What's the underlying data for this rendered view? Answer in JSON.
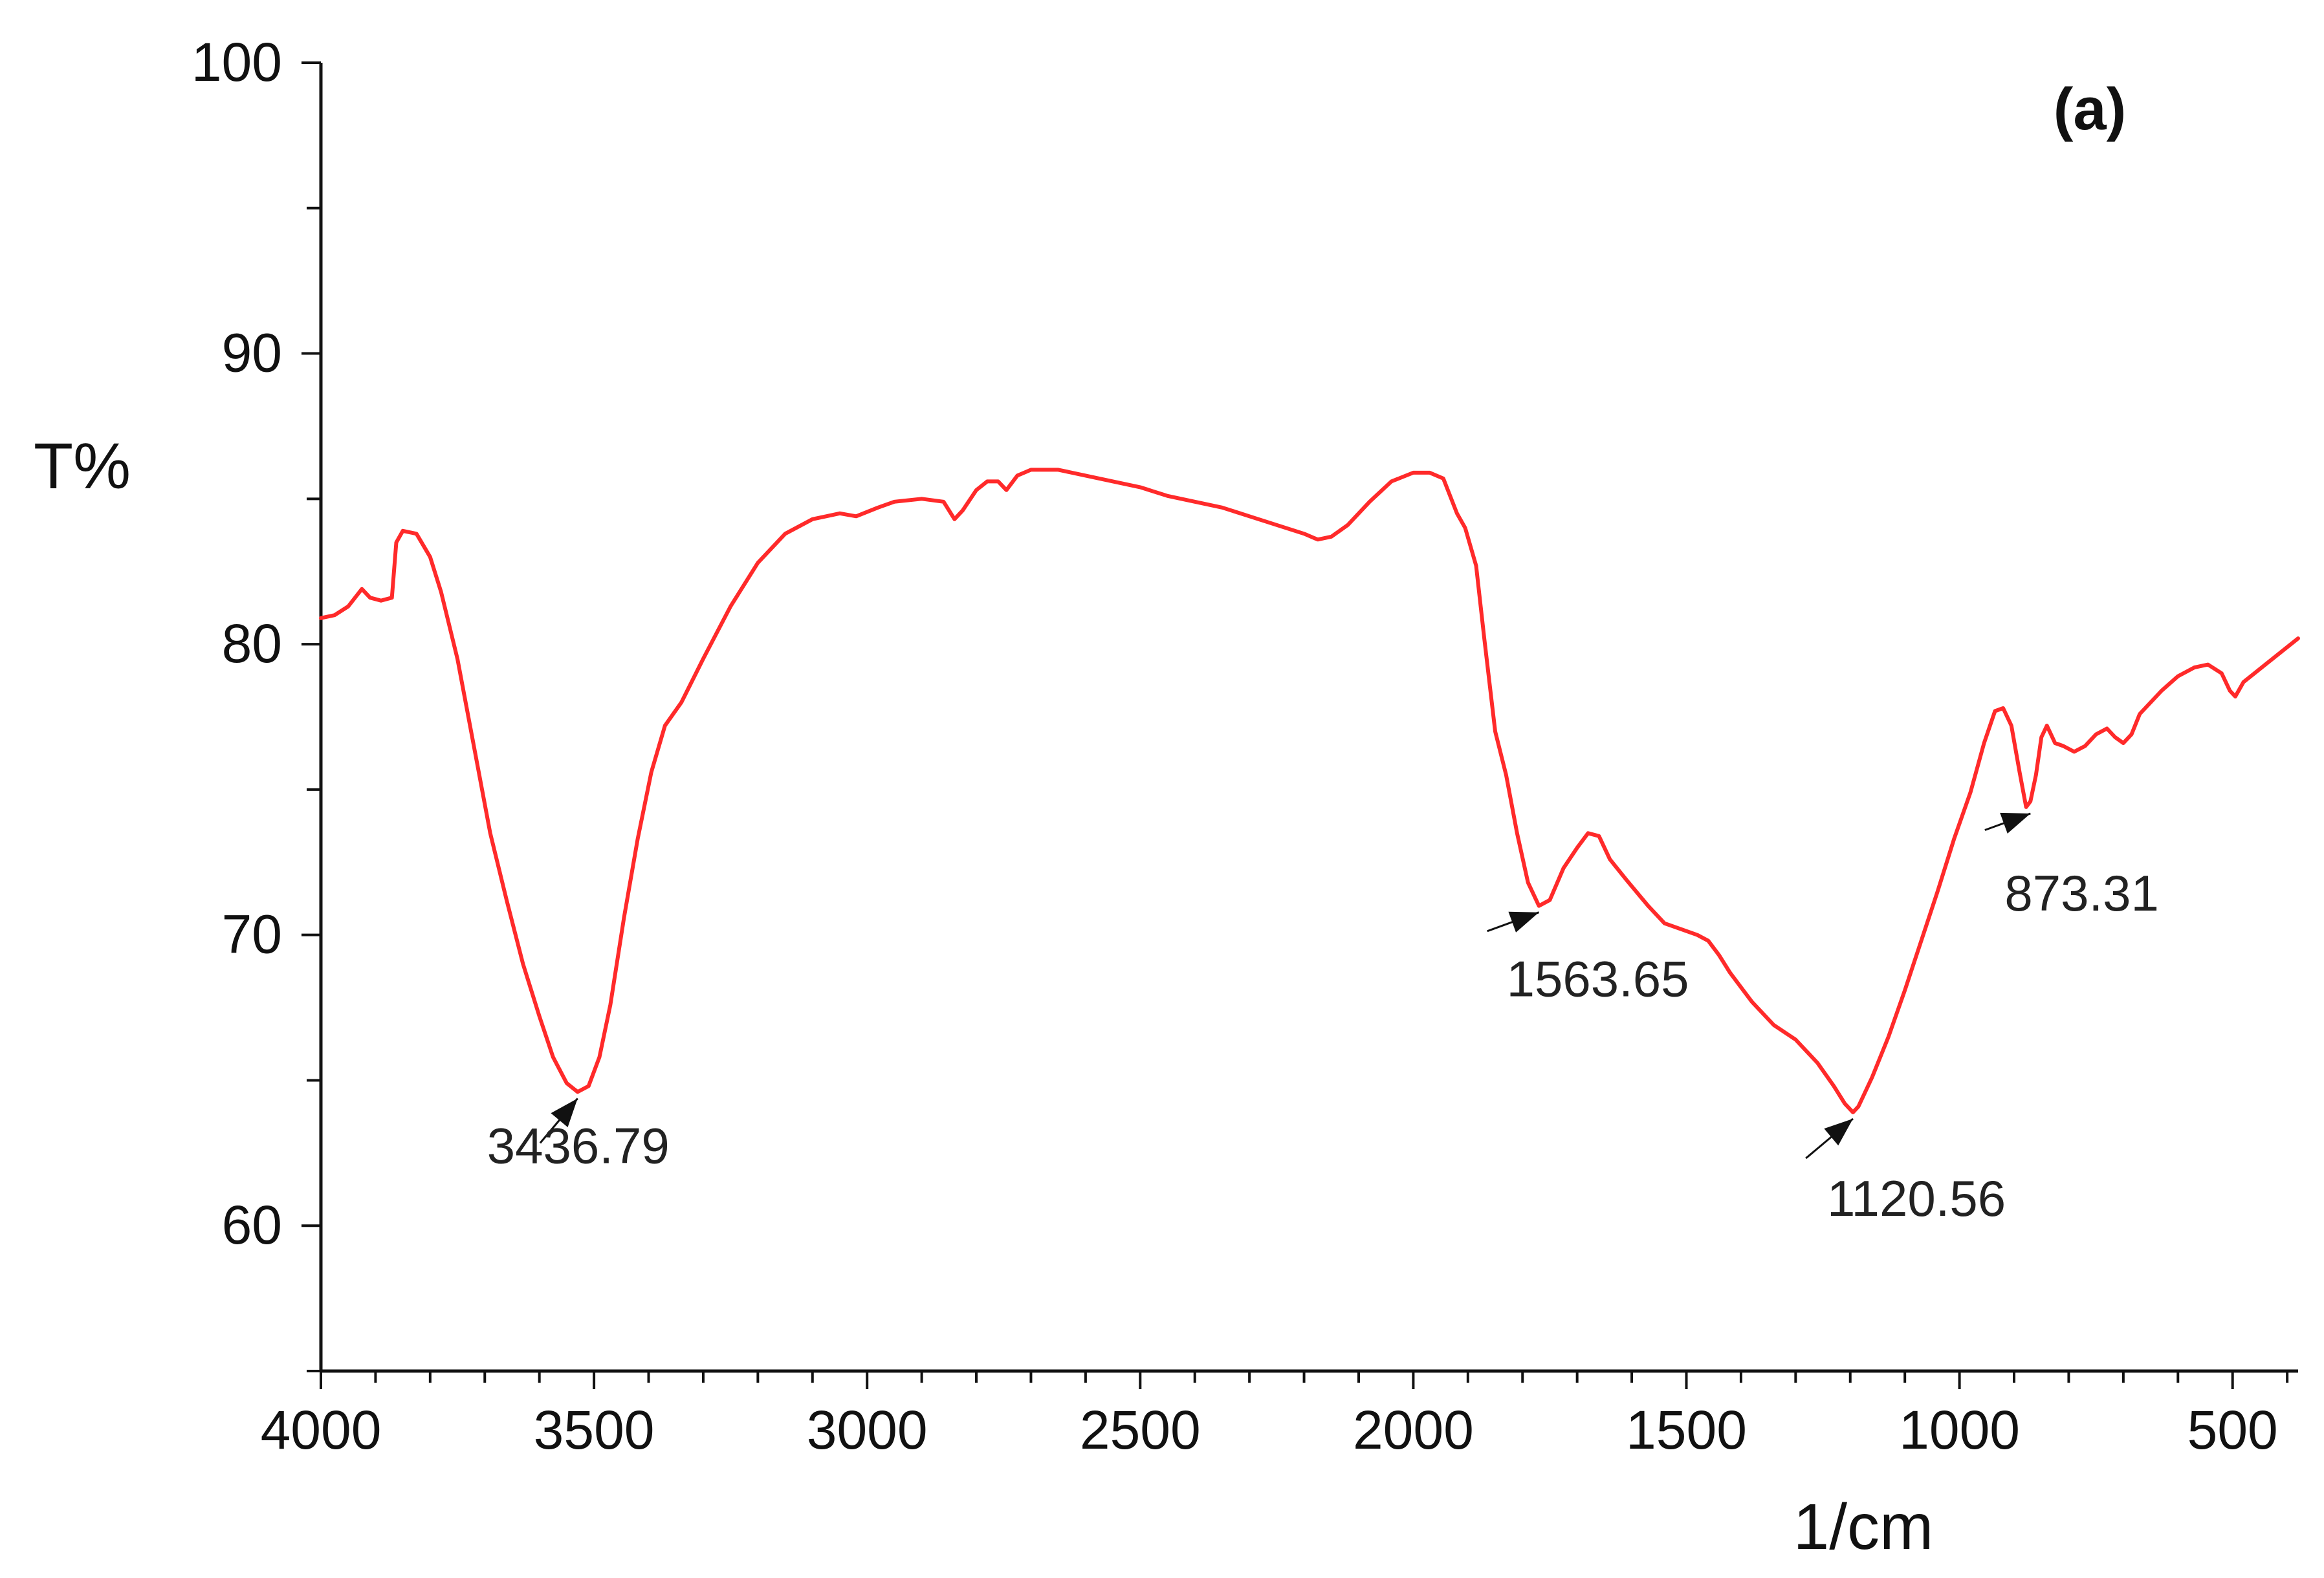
{
  "chart_data": {
    "type": "line",
    "title": "",
    "panel_label": "(a)",
    "xlabel": "1/cm",
    "ylabel": "T%",
    "xlim": [
      4000,
      380
    ],
    "ylim": [
      55,
      100
    ],
    "x_reversed": true,
    "grid": false,
    "legend": "none",
    "x_ticks": [
      4000,
      3500,
      3000,
      2500,
      2000,
      1500,
      1000,
      500
    ],
    "x_tick_labels": [
      "4000",
      "3500",
      "3000",
      "2500",
      "2000",
      "1500",
      "1000",
      "500"
    ],
    "y_ticks": [
      60,
      70,
      80,
      90,
      100
    ],
    "y_tick_labels": [
      "60",
      "70",
      "80",
      "90",
      "100"
    ],
    "line_color": "#ff2a2a",
    "arrow_color": "#111111",
    "series": [
      {
        "color": "#ff2a2a",
        "points": [
          [
            4000,
            80.9
          ],
          [
            3975,
            81.0
          ],
          [
            3950,
            81.3
          ],
          [
            3925,
            81.9
          ],
          [
            3910,
            81.6
          ],
          [
            3890,
            81.5
          ],
          [
            3870,
            81.6
          ],
          [
            3862,
            83.5
          ],
          [
            3850,
            83.9
          ],
          [
            3825,
            83.8
          ],
          [
            3800,
            83.0
          ],
          [
            3780,
            81.8
          ],
          [
            3750,
            79.5
          ],
          [
            3720,
            76.5
          ],
          [
            3690,
            73.5
          ],
          [
            3660,
            71.2
          ],
          [
            3630,
            69.0
          ],
          [
            3600,
            67.2
          ],
          [
            3575,
            65.8
          ],
          [
            3550,
            64.9
          ],
          [
            3530,
            64.6
          ],
          [
            3510,
            64.8
          ],
          [
            3490,
            65.8
          ],
          [
            3470,
            67.6
          ],
          [
            3445,
            70.6
          ],
          [
            3420,
            73.3
          ],
          [
            3395,
            75.6
          ],
          [
            3370,
            77.2
          ],
          [
            3340,
            78.0
          ],
          [
            3300,
            79.5
          ],
          [
            3250,
            81.3
          ],
          [
            3200,
            82.8
          ],
          [
            3150,
            83.8
          ],
          [
            3100,
            84.3
          ],
          [
            3050,
            84.5
          ],
          [
            3020,
            84.4
          ],
          [
            2980,
            84.7
          ],
          [
            2950,
            84.9
          ],
          [
            2900,
            85.0
          ],
          [
            2860,
            84.9
          ],
          [
            2840,
            84.3
          ],
          [
            2825,
            84.6
          ],
          [
            2800,
            85.3
          ],
          [
            2780,
            85.6
          ],
          [
            2760,
            85.6
          ],
          [
            2745,
            85.3
          ],
          [
            2725,
            85.8
          ],
          [
            2700,
            86.0
          ],
          [
            2650,
            86.0
          ],
          [
            2600,
            85.8
          ],
          [
            2550,
            85.6
          ],
          [
            2500,
            85.4
          ],
          [
            2450,
            85.1
          ],
          [
            2400,
            84.9
          ],
          [
            2350,
            84.7
          ],
          [
            2300,
            84.4
          ],
          [
            2250,
            84.1
          ],
          [
            2200,
            83.8
          ],
          [
            2175,
            83.6
          ],
          [
            2150,
            83.7
          ],
          [
            2120,
            84.1
          ],
          [
            2080,
            84.9
          ],
          [
            2040,
            85.6
          ],
          [
            2000,
            85.9
          ],
          [
            1970,
            85.9
          ],
          [
            1945,
            85.7
          ],
          [
            1920,
            84.5
          ],
          [
            1905,
            84.0
          ],
          [
            1885,
            82.7
          ],
          [
            1870,
            80.2
          ],
          [
            1850,
            77.0
          ],
          [
            1830,
            75.5
          ],
          [
            1810,
            73.5
          ],
          [
            1790,
            71.8
          ],
          [
            1770,
            71.0
          ],
          [
            1750,
            71.2
          ],
          [
            1725,
            72.3
          ],
          [
            1700,
            73.0
          ],
          [
            1680,
            73.5
          ],
          [
            1660,
            73.4
          ],
          [
            1640,
            72.6
          ],
          [
            1610,
            71.9
          ],
          [
            1570,
            71.0
          ],
          [
            1540,
            70.4
          ],
          [
            1510,
            70.2
          ],
          [
            1480,
            70.0
          ],
          [
            1460,
            69.8
          ],
          [
            1440,
            69.3
          ],
          [
            1420,
            68.7
          ],
          [
            1380,
            67.7
          ],
          [
            1340,
            66.9
          ],
          [
            1300,
            66.4
          ],
          [
            1260,
            65.6
          ],
          [
            1230,
            64.8
          ],
          [
            1210,
            64.2
          ],
          [
            1195,
            63.9
          ],
          [
            1185,
            64.1
          ],
          [
            1160,
            65.1
          ],
          [
            1130,
            66.5
          ],
          [
            1100,
            68.1
          ],
          [
            1070,
            69.8
          ],
          [
            1040,
            71.5
          ],
          [
            1010,
            73.3
          ],
          [
            980,
            74.9
          ],
          [
            955,
            76.6
          ],
          [
            935,
            77.7
          ],
          [
            920,
            77.8
          ],
          [
            905,
            77.2
          ],
          [
            890,
            75.6
          ],
          [
            878,
            74.4
          ],
          [
            870,
            74.6
          ],
          [
            860,
            75.5
          ],
          [
            850,
            76.8
          ],
          [
            840,
            77.2
          ],
          [
            825,
            76.6
          ],
          [
            810,
            76.5
          ],
          [
            790,
            76.3
          ],
          [
            770,
            76.5
          ],
          [
            750,
            76.9
          ],
          [
            730,
            77.1
          ],
          [
            715,
            76.8
          ],
          [
            700,
            76.6
          ],
          [
            685,
            76.9
          ],
          [
            670,
            77.6
          ],
          [
            650,
            78.0
          ],
          [
            630,
            78.4
          ],
          [
            600,
            78.9
          ],
          [
            570,
            79.2
          ],
          [
            545,
            79.3
          ],
          [
            520,
            79.0
          ],
          [
            505,
            78.4
          ],
          [
            495,
            78.2
          ],
          [
            480,
            78.7
          ],
          [
            460,
            79.0
          ],
          [
            440,
            79.3
          ],
          [
            420,
            79.6
          ],
          [
            400,
            79.9
          ],
          [
            380,
            80.2
          ]
        ]
      }
    ],
    "annotations": [
      {
        "text": "3436.79",
        "x": 3530,
        "y": 64.6,
        "arrow_len": 90,
        "angle_deg": 50,
        "label_dx": 140,
        "label_dy": 100
      },
      {
        "text": "1563.65",
        "x": 1770,
        "y": 71.0,
        "arrow_len": 85,
        "angle_deg": 20,
        "label_dx": 50,
        "label_dy": 130
      },
      {
        "text": "1120.56",
        "x": 1195,
        "y": 63.9,
        "arrow_len": 95,
        "angle_deg": 40,
        "label_dx": 40,
        "label_dy": 150
      },
      {
        "text": "873.31",
        "x": 870,
        "y": 74.4,
        "arrow_len": 75,
        "angle_deg": 20,
        "label_dx": 40,
        "label_dy": 150
      }
    ]
  }
}
